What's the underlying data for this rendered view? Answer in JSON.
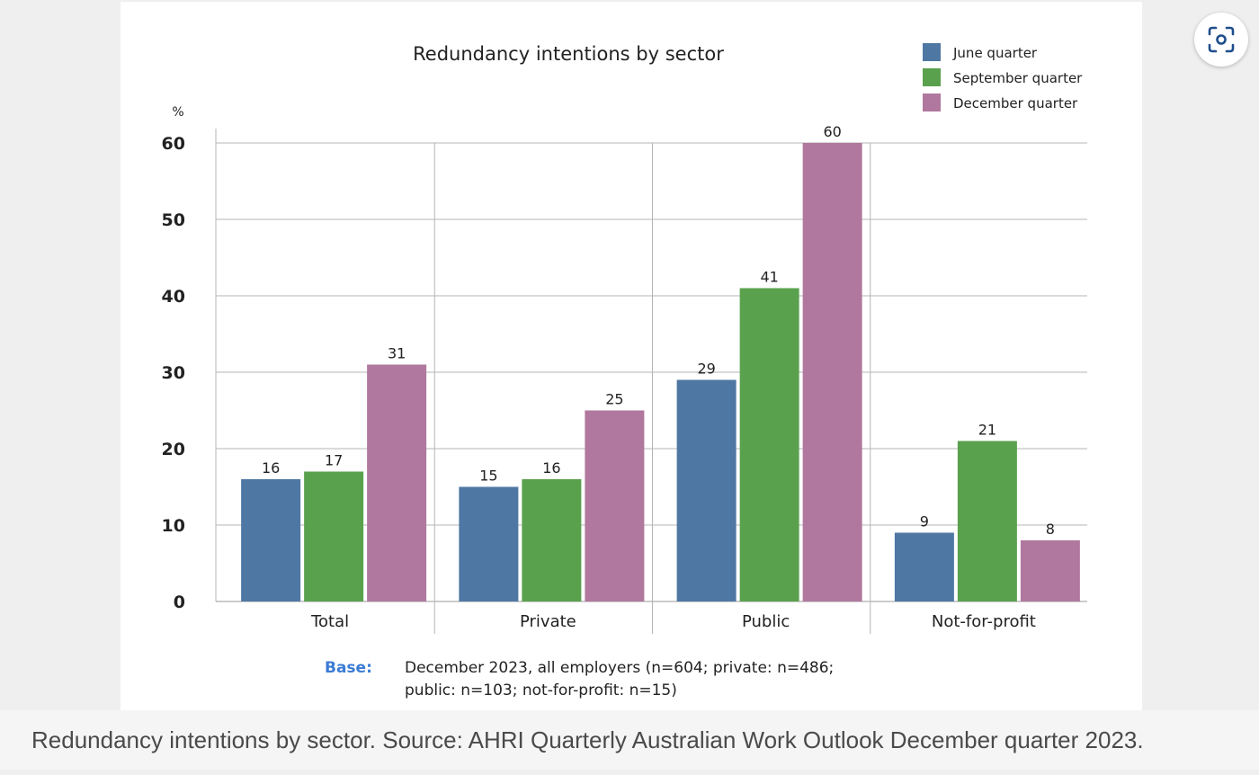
{
  "chart_data": {
    "type": "bar",
    "title": "Redundancy intentions by sector",
    "ylabel": "%",
    "xlabel": "",
    "ylim": [
      0,
      60
    ],
    "yticks": [
      "0",
      "10",
      "20",
      "30",
      "40",
      "50",
      "60"
    ],
    "categories": [
      "Total",
      "Private",
      "Public",
      "Not-for-profit"
    ],
    "series": [
      {
        "name": "June quarter",
        "color": "#4f77a3",
        "values": [
          16,
          15,
          29,
          9
        ]
      },
      {
        "name": "September quarter",
        "color": "#5aa14e",
        "values": [
          17,
          16,
          41,
          21
        ]
      },
      {
        "name": "December quarter",
        "color": "#b0789e",
        "values": [
          31,
          25,
          60,
          8
        ]
      }
    ],
    "legend_position": "top-right",
    "grid": true,
    "base_label": "Base:",
    "base_line1": "December 2023, all employers (n=604; private: n=486;",
    "base_line2": "public: n=103; not-for-profit: n=15)"
  },
  "caption": "Redundancy intentions by sector. Source: AHRI Quarterly Australian Work Outlook December quarter 2023.",
  "scan_icon": "scan-focus-icon"
}
